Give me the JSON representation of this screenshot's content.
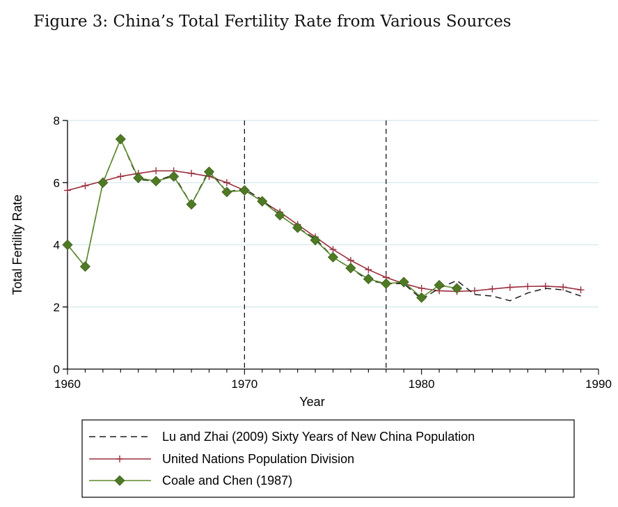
{
  "figure_title": "Figure 3:   China’s Total Fertility Rate from Various Sources",
  "colors": {
    "lu_zhai": "#1a1a1a",
    "un": "#9b2f3e",
    "coale": "#5a8a2a",
    "coale_marker": "#4f7a24",
    "grid": "#d6e8ec",
    "axis": "#000000"
  },
  "chart_data": {
    "type": "line",
    "title": "",
    "xlabel": "Year",
    "ylabel": "Total Fertility Rate",
    "xlim": [
      1960,
      1990
    ],
    "ylim": [
      0,
      8
    ],
    "x_ticks": [
      1960,
      1970,
      1980,
      1990
    ],
    "x_tick_labels": [
      "1960",
      "1970",
      "1980",
      "1990"
    ],
    "y_ticks": [
      0,
      2,
      4,
      6,
      8
    ],
    "y_tick_labels": [
      "0",
      "2",
      "4",
      "6",
      "8"
    ],
    "grid": true,
    "reference_lines_x": [
      1970,
      1978
    ],
    "legend_position": "bottom",
    "series": [
      {
        "name": "Lu and Zhai (2009) Sixty Years of New China Population",
        "style": "dashed",
        "x": [
          1960,
          1961,
          1962,
          1963,
          1964,
          1965,
          1966,
          1967,
          1968,
          1969,
          1970,
          1971,
          1972,
          1973,
          1974,
          1975,
          1976,
          1977,
          1978,
          1979,
          1980,
          1981,
          1982,
          1983,
          1984,
          1985,
          1986,
          1987,
          1988,
          1989
        ],
        "values": [
          4.0,
          3.3,
          6.0,
          7.4,
          6.1,
          6.05,
          6.25,
          5.3,
          6.4,
          5.7,
          5.8,
          5.45,
          4.95,
          4.55,
          4.2,
          3.6,
          3.25,
          2.85,
          2.75,
          2.75,
          2.25,
          2.6,
          2.85,
          2.4,
          2.35,
          2.2,
          2.45,
          2.6,
          2.55,
          2.35
        ]
      },
      {
        "name": "United Nations Population Division",
        "style": "solid-plus",
        "x": [
          1960,
          1961,
          1962,
          1963,
          1964,
          1965,
          1966,
          1967,
          1968,
          1969,
          1970,
          1971,
          1972,
          1973,
          1974,
          1975,
          1976,
          1977,
          1978,
          1979,
          1980,
          1981,
          1982,
          1983,
          1984,
          1985,
          1986,
          1987,
          1988,
          1989
        ],
        "values": [
          5.75,
          5.9,
          6.05,
          6.2,
          6.3,
          6.38,
          6.38,
          6.3,
          6.2,
          6.0,
          5.75,
          5.4,
          5.05,
          4.65,
          4.25,
          3.85,
          3.5,
          3.2,
          2.95,
          2.75,
          2.6,
          2.52,
          2.5,
          2.52,
          2.58,
          2.63,
          2.66,
          2.67,
          2.64,
          2.55
        ]
      },
      {
        "name": "Coale and Chen (1987)",
        "style": "solid-diamond",
        "x": [
          1960,
          1961,
          1962,
          1963,
          1964,
          1965,
          1966,
          1967,
          1968,
          1969,
          1970,
          1971,
          1972,
          1973,
          1974,
          1975,
          1976,
          1977,
          1978,
          1979,
          1980,
          1981,
          1982
        ],
        "values": [
          4.0,
          3.3,
          6.0,
          7.4,
          6.15,
          6.05,
          6.2,
          5.3,
          6.35,
          5.7,
          5.75,
          5.4,
          4.95,
          4.55,
          4.15,
          3.6,
          3.25,
          2.9,
          2.75,
          2.8,
          2.3,
          2.7,
          2.6
        ]
      }
    ]
  }
}
